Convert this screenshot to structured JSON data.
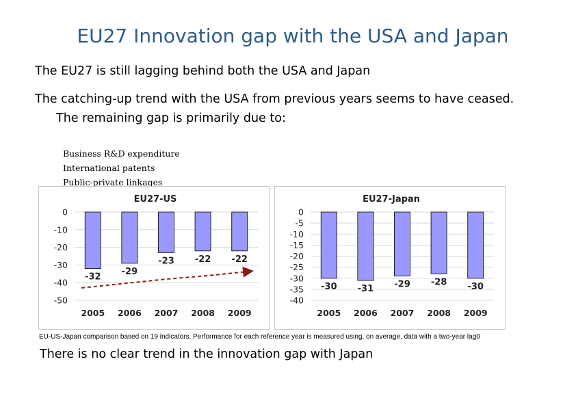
{
  "slide": {
    "title": "EU27 Innovation gap with the USA and Japan",
    "paragraph1": "The EU27 is still lagging behind both the USA and Japan",
    "paragraph2_line1": "The catching-up trend with the USA from previous years seems to have ceased.",
    "paragraph2_line2": "The remaining gap is primarily due to:",
    "bullets": [
      "Business R&D expenditure",
      "International patents",
      "Public-private linkages"
    ],
    "caption": "EU-US-Japan comparison based on 19 indicators. Performance for each reference year is measured using, on average, data with a two-year lag0",
    "footer": "There is no clear trend in the innovation gap with Japan"
  },
  "chart_data": [
    {
      "type": "bar",
      "title": "EU27-US",
      "categories": [
        "2005",
        "2006",
        "2007",
        "2008",
        "2009"
      ],
      "values": [
        -32,
        -29,
        -23,
        -22,
        -22
      ],
      "ylim": [
        -50,
        0
      ],
      "yticks": [
        0,
        -10,
        -20,
        -30,
        -40,
        -50
      ],
      "bar_color": "#9999ff",
      "trendline": {
        "type": "line",
        "style": "dashed-arrow",
        "color": "#8b1a1a",
        "values": [
          -43,
          -40.5,
          -38,
          -36,
          -33.5
        ]
      }
    },
    {
      "type": "bar",
      "title": "EU27-Japan",
      "categories": [
        "2005",
        "2006",
        "2007",
        "2008",
        "2009"
      ],
      "values": [
        -30,
        -31,
        -29,
        -28,
        -30
      ],
      "ylim": [
        -40,
        0
      ],
      "yticks": [
        0,
        -5,
        -10,
        -15,
        -20,
        -25,
        -30,
        -35,
        -40
      ],
      "bar_color": "#9999ff"
    }
  ]
}
